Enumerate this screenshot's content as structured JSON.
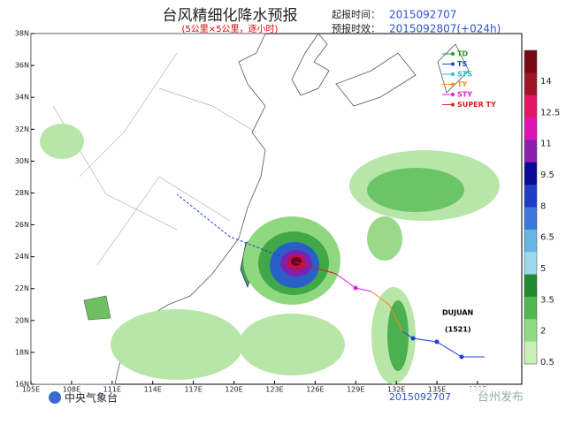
{
  "header": {
    "title": "台风精细化降水预报",
    "subtitle": "(5公里×5公里，逐小时)",
    "start_label": "起报时间：",
    "start_time": "2015092707",
    "lead_label": "预报时效：",
    "lead_time": "2015092807(+024h)"
  },
  "map": {
    "lat_labels": [
      "38N",
      "36N",
      "34N",
      "32N",
      "30N",
      "28N",
      "26N",
      "24N",
      "22N",
      "20N",
      "18N",
      "16N"
    ],
    "lon_labels": [
      "105E",
      "108E",
      "111E",
      "114E",
      "117E",
      "120E",
      "123E",
      "126E",
      "129E",
      "132E",
      "135E",
      "138E"
    ]
  },
  "legend": {
    "categories": [
      "TD",
      "TS",
      "STS",
      "TY",
      "STY",
      "SUPER TY"
    ]
  },
  "colorbar": {
    "ticks": [
      14,
      12.5,
      11,
      9.5,
      8,
      6.5,
      5,
      3.5,
      2,
      0.5
    ]
  },
  "typhoon": {
    "name": "DUJUAN",
    "number": "(1521)"
  },
  "footer": {
    "agency": "中央气象台",
    "time": "2015092707",
    "watermark": "台州发布"
  }
}
